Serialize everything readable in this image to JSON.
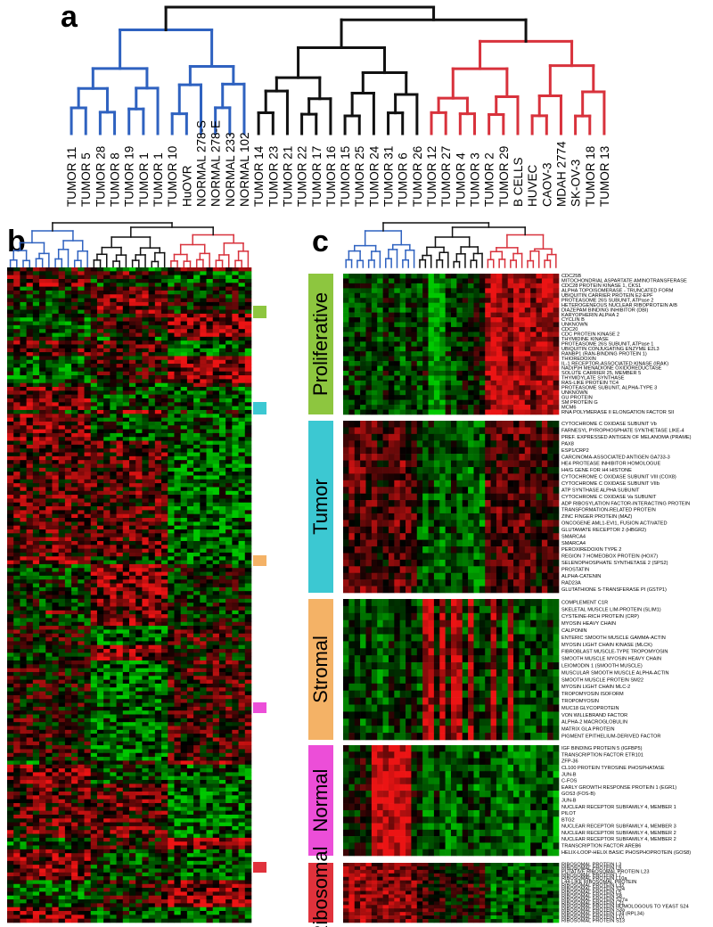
{
  "panel_a": {
    "label": "a",
    "samples": [
      "TUMOR 11",
      "TUMOR 5",
      "TUMOR 28",
      "TUMOR 8",
      "TUMOR 19",
      "TUMOR 1",
      "TUMOR 1",
      "TUMOR 10",
      "HuOVR",
      "NORMAL 278-S",
      "NORMAL 278-E",
      "NORMAL 233",
      "NORMAL 102",
      "TUMOR 14",
      "TUMOR 23",
      "TUMOR 21",
      "TUMOR 22",
      "TUMOR 17",
      "TUMOR 16",
      "TUMOR 15",
      "TUMOR 25",
      "TUMOR 24",
      "TUMOR 31",
      "TUMOR 6",
      "TUMOR 26",
      "TUMOR 12",
      "TUMOR 27",
      "TUMOR 4",
      "TUMOR 3",
      "TUMOR 2",
      "TUMOR 29",
      "B CELLS",
      "HUVEC",
      "CAOV-3",
      "MDAH 2774",
      "SK-OV-3",
      "TUMOR 18",
      "TUMOR 13"
    ]
  },
  "panel_b": {
    "label": "b"
  },
  "panel_c": {
    "label": "c",
    "clusters": [
      {
        "name": "Proliferative",
        "genes": [
          "CDC25B",
          "MITOCHONDRIAL ASPARTATE AMINOTRANSFERASE",
          "CDC28 PROTEIN KINASE 1, CKS1",
          "ALPHA TOPOISOMERASE - TRUNCATED FORM",
          "UBIQUITIN CARRIER PROTEIN E2-EPF",
          "PROTEASOME 26S SUBUNIT, ATPase 2",
          "HETEROGENEOUS NUCLEAR RIBOPROTEIN A/B",
          "DIAZEPAM BINDING INHIBITOR (DBI)",
          "KARYOPHERIN ALPHA 2",
          "CYCLIN B",
          "UNKNOWN",
          "CDC20",
          "CDC PROTEIN KINASE 2",
          "THYMIDINE KINASE",
          "PROTEASOME 26S SUBUNIT, ATPase 1",
          "UBIQUITIN CONJUGATING ENZYME E2L3",
          "RANBP1 (RAN-BINDING PROTEIN 1)",
          "THIOREDOXIN",
          "IL-1 RECEPTOR-ASSOCIATED KINASE (IRAK)",
          "NAD(P)H MENADIONE OXIDOREDUCTASE",
          "SOLUTE CARRIER 25, MEMBER 5",
          "THYMIDYLATE SYNTHASE",
          "RAS-LIKE PROTEIN TC4",
          "PROTEASOME SUBUNIT, ALPHA-TYPE 3",
          "UNKNOWN",
          "GU PROTEIN",
          "SM PROTEIN G",
          "MCM6",
          "RNA POLYMERASE II ELONGATION FACTOR SII"
        ]
      },
      {
        "name": "Tumor",
        "genes": [
          "CYTOCHROME C OXIDASE SUBUNIT Vb",
          "FARNESYL PYROPHOSPHATE SYNTHETASE LIKE-4",
          "PREF. EXPRESSED ANTIGEN OF MELANOMA (PRAME)",
          "PAX8",
          "ESP1/CRP2",
          "CARCINOMA-ASSOCIATED ANTIGEN GA733-3",
          "HE4 PROTEASE INHIBITOR HOMOLOGUE",
          "H4/G GENE FOR H4 HISTONE",
          "CYTOCHROME C OXIDASE SUBUNIT VIII (COX8)",
          "CYTOCHROME C OXIDASE SUBUNIT VIIb",
          "ATP SYNTHASE ALPHA SUBUNIT",
          "CYTOCHROME C OXIDASE Va SUBUNIT",
          "ADP RIBOSYLATION FACTOR-INTERACTING PROTEIN",
          "TRANSFORMATION-RELATED PROTEIN",
          "ZINC FINGER PROTEIN (MAZ)",
          "ONCOGENE AML1-EVI1, FUSION ACTIVATED",
          "GLUTAMATE RECEPTOR 2 (HBGR2)",
          "SMARCA4",
          "SMARCA4",
          "PEROXIREDOXIN TYPE 2",
          "REGION 7 HOMEOBOX PROTEIN (HOX7)",
          "SELENOPHOSPHATE SYNTHETASE 2 (SPS2)",
          "PROSTATIN",
          "ALPHA-CATENIN",
          "RAD23A",
          "GLUTATHIONE S-TRANSFERASE PI (GSTP1)"
        ]
      },
      {
        "name": "Stromal",
        "genes": [
          "COMPLEMENT C1R",
          "SKELETAL MUSCLE LIM-PROTEIN (SLIM1)",
          "CYSTEINE-RICH PROTEIN (CRP)",
          "MYOSIN HEAVY CHAIN",
          "CALPONIN",
          "ENTERIC SMOOTH MUSCLE GAMMA-ACTIN",
          "MYOSIN LIGHT CHAIN KINASE (MLCK)",
          "FIBROBLAST MUSCLE-TYPE TROPOMYOSIN",
          "SMOOTH MUSCLE MYOSIN HEAVY CHAIN",
          "LEIOMODIN 1 (SMOOTH MUSCLE)",
          "MUSCULAR SMOOTH MUSCLE ALPHA-ACTIN",
          "SMOOTH MUSCLE PROTEIN SM22",
          "MYOSIN LIGHT CHAIN MLC-2",
          "TROPOMYOSIN ISOFORM",
          "TROPOMYOSIN",
          "MUC18 GLYCOPROTEIN",
          "VON WILLEBRAND FACTOR",
          "ALPHA-2 MACROGLOBULIN",
          "MATRIX GLA PROTEIN",
          "PIGMENT EPITHELIUM-DERIVED FACTOR"
        ]
      },
      {
        "name": "Normal",
        "genes": [
          "IGF BINDING PROTEIN 5 (IGFBP5)",
          "TRANSCRIPTION FACTOR ETR101",
          "ZFP-36",
          "CL100 PROTEIN TYROSINE PHOSPHATASE",
          "JUN-B",
          "C-FOS",
          "EARLY GROWTH RESPONSE PROTEIN 1 (EGR1)",
          "GOS3 (FOS-B)",
          "JUN-B",
          "NUCLEAR RECEPTOR SUBFAMILY 4, MEMBER 1",
          "PILOT",
          "BTG2",
          "NUCLEAR RECEPTOR SUBFAMILY 4, MEMBER 3",
          "NUCLEAR RECEPTOR SUBFAMILY 4, MEMBER 2",
          "NUCLEAR RECEPTOR SUBFAMILY 4, MEMBER 2",
          "TRANSCRIPTION FACTOR AREB6",
          "HELIX-LOOP-HELIX BASIC PHOSPHOPROTEIN (GOS8)"
        ]
      },
      {
        "name": "Ribosomal",
        "genes": [
          "RIBOSOMAL PROTEIN L3",
          "RIBOSOMAL PROTEIN L9",
          "PUTATIVE RIBOSOMAL PROTEIN L23",
          "RIBOSOMAL PROTEIN L7",
          "RIBOSOMAL PROTEIN L10a",
          "L44-LIKE RIBOSOMAL PROTEIN",
          "RIBOSOMAL PROTEIN L32",
          "RIBOSOMAL PROTEIN S24",
          "RIBOSOMAL PROTEIN L5",
          "RIBOSOMAL PROTEIN S8",
          "RIBOSOMAL PROTEIN S27a",
          "RIBOSOMAL PROTEIN L21",
          "RIBOSOMAL PROTEIN HOMOLOGOUS TO YEAST S24",
          "RIBOSOMAL PROTEIN S3a",
          "RIBOSOMAL PROTEIN L34 (RPL34)",
          "RIBOSOMAL PROTEIN L10",
          "RIBOSOMAL PROTEIN S13"
        ]
      }
    ]
  }
}
